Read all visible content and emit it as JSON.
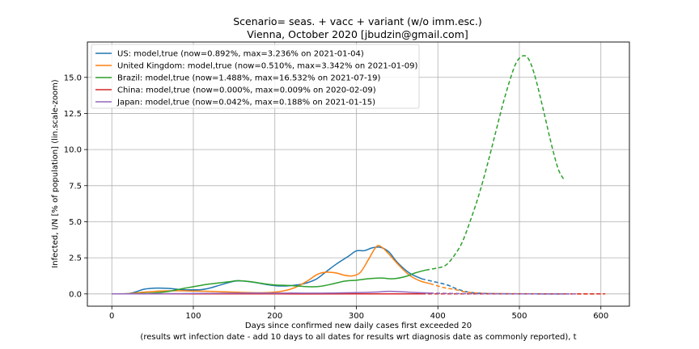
{
  "chart_data": {
    "type": "line",
    "title": "Scenario= seas. + vacc + variant (w/o imm.esc.)",
    "subtitle": "Vienna, October 2020 [jbudzin@gmail.com]",
    "xlabel": "Days since confirmed new daily cases first exceeded 20",
    "xlabel2": "(results wrt infection date - add 10 days to all dates for results wrt diagnosis date as commonly reported), t",
    "ylabel": "Infected, I/N [% of population] (lin.scale-zoom)",
    "xlim": [
      -30,
      635
    ],
    "ylim": [
      -0.85,
      17.45
    ],
    "xticks": [
      0,
      100,
      200,
      300,
      400,
      500,
      600
    ],
    "yticks": [
      0.0,
      2.5,
      5.0,
      7.5,
      10.0,
      12.5,
      15.0
    ],
    "ytick_labels": [
      "0.0",
      "2.5",
      "5.0",
      "7.5",
      "10.0",
      "12.5",
      "15.0"
    ],
    "grid": true,
    "legend_position": "top-left",
    "series": [
      {
        "name": "US: model,true (now=0.892%, max=3.236% on 2021-01-04)",
        "color": "#1f77b4",
        "split_x": 380,
        "points": [
          [
            0,
            0
          ],
          [
            20,
            0.02
          ],
          [
            30,
            0.15
          ],
          [
            40,
            0.33
          ],
          [
            55,
            0.4
          ],
          [
            70,
            0.38
          ],
          [
            85,
            0.3
          ],
          [
            100,
            0.28
          ],
          [
            110,
            0.3
          ],
          [
            120,
            0.4
          ],
          [
            135,
            0.65
          ],
          [
            150,
            0.88
          ],
          [
            160,
            0.9
          ],
          [
            175,
            0.8
          ],
          [
            190,
            0.65
          ],
          [
            205,
            0.55
          ],
          [
            220,
            0.58
          ],
          [
            235,
            0.7
          ],
          [
            250,
            1.0
          ],
          [
            262,
            1.5
          ],
          [
            275,
            2.05
          ],
          [
            290,
            2.6
          ],
          [
            300,
            2.98
          ],
          [
            310,
            3.0
          ],
          [
            320,
            3.2
          ],
          [
            330,
            3.22
          ],
          [
            340,
            2.9
          ],
          [
            350,
            2.2
          ],
          [
            365,
            1.45
          ],
          [
            380,
            1.05
          ],
          [
            395,
            0.85
          ],
          [
            410,
            0.65
          ],
          [
            420,
            0.42
          ],
          [
            430,
            0.22
          ],
          [
            440,
            0.1
          ],
          [
            455,
            0.04
          ],
          [
            480,
            0.01
          ],
          [
            520,
            0
          ],
          [
            560,
            0
          ]
        ]
      },
      {
        "name": "United Kingdom: model,true (now=0.510%, max=3.342% on 2021-01-09)",
        "color": "#ff7f0e",
        "split_x": 390,
        "points": [
          [
            0,
            0
          ],
          [
            20,
            0.02
          ],
          [
            40,
            0.12
          ],
          [
            60,
            0.2
          ],
          [
            80,
            0.22
          ],
          [
            100,
            0.2
          ],
          [
            120,
            0.18
          ],
          [
            140,
            0.14
          ],
          [
            160,
            0.1
          ],
          [
            180,
            0.08
          ],
          [
            195,
            0.1
          ],
          [
            210,
            0.2
          ],
          [
            225,
            0.45
          ],
          [
            240,
            0.9
          ],
          [
            252,
            1.35
          ],
          [
            262,
            1.5
          ],
          [
            275,
            1.45
          ],
          [
            285,
            1.3
          ],
          [
            295,
            1.25
          ],
          [
            305,
            1.5
          ],
          [
            315,
            2.4
          ],
          [
            325,
            3.3
          ],
          [
            332,
            3.2
          ],
          [
            340,
            2.75
          ],
          [
            352,
            2.0
          ],
          [
            365,
            1.3
          ],
          [
            378,
            0.9
          ],
          [
            390,
            0.72
          ],
          [
            400,
            0.55
          ],
          [
            410,
            0.4
          ],
          [
            420,
            0.32
          ],
          [
            430,
            0.18
          ],
          [
            440,
            0.1
          ],
          [
            455,
            0.04
          ],
          [
            480,
            0.02
          ],
          [
            520,
            0.01
          ],
          [
            560,
            0
          ],
          [
            600,
            0
          ],
          [
            605,
            0
          ]
        ]
      },
      {
        "name": "Brazil: model,true (now=1.488%, max=16.532% on 2021-07-19)",
        "color": "#2ca02c",
        "split_x": 385,
        "points": [
          [
            0,
            0
          ],
          [
            30,
            0.02
          ],
          [
            50,
            0.06
          ],
          [
            70,
            0.18
          ],
          [
            85,
            0.35
          ],
          [
            100,
            0.5
          ],
          [
            115,
            0.65
          ],
          [
            130,
            0.75
          ],
          [
            145,
            0.85
          ],
          [
            155,
            0.92
          ],
          [
            170,
            0.85
          ],
          [
            185,
            0.72
          ],
          [
            200,
            0.62
          ],
          [
            220,
            0.58
          ],
          [
            240,
            0.5
          ],
          [
            255,
            0.52
          ],
          [
            270,
            0.68
          ],
          [
            285,
            0.88
          ],
          [
            300,
            0.95
          ],
          [
            315,
            1.05
          ],
          [
            330,
            1.1
          ],
          [
            345,
            1.05
          ],
          [
            360,
            1.2
          ],
          [
            372,
            1.45
          ],
          [
            385,
            1.65
          ],
          [
            400,
            1.8
          ],
          [
            410,
            2.0
          ],
          [
            420,
            2.65
          ],
          [
            430,
            3.6
          ],
          [
            440,
            5.1
          ],
          [
            450,
            6.8
          ],
          [
            460,
            8.8
          ],
          [
            470,
            11.0
          ],
          [
            480,
            13.2
          ],
          [
            490,
            15.1
          ],
          [
            497,
            16.1
          ],
          [
            505,
            16.5
          ],
          [
            512,
            16.2
          ],
          [
            520,
            14.9
          ],
          [
            530,
            12.6
          ],
          [
            540,
            10.2
          ],
          [
            548,
            8.6
          ],
          [
            555,
            7.9
          ]
        ]
      },
      {
        "name": "China: model,true (now=0.000%, max=0.009% on 2020-02-09)",
        "color": "#d62728",
        "split_x": 380,
        "points": [
          [
            0,
            0
          ],
          [
            30,
            0.005
          ],
          [
            60,
            0.009
          ],
          [
            100,
            0.004
          ],
          [
            200,
            0
          ],
          [
            300,
            0
          ],
          [
            380,
            0
          ],
          [
            500,
            0
          ],
          [
            605,
            0
          ]
        ]
      },
      {
        "name": "Japan: model,true (now=0.042%, max=0.188% on 2021-01-15)",
        "color": "#9467bd",
        "split_x": 390,
        "points": [
          [
            0,
            0
          ],
          [
            60,
            0.01
          ],
          [
            100,
            0.03
          ],
          [
            150,
            0.05
          ],
          [
            180,
            0.06
          ],
          [
            200,
            0.05
          ],
          [
            220,
            0.06
          ],
          [
            250,
            0.05
          ],
          [
            270,
            0.06
          ],
          [
            290,
            0.08
          ],
          [
            310,
            0.1
          ],
          [
            325,
            0.13
          ],
          [
            340,
            0.18
          ],
          [
            355,
            0.15
          ],
          [
            370,
            0.1
          ],
          [
            390,
            0.06
          ],
          [
            410,
            0.04
          ],
          [
            440,
            0.02
          ],
          [
            480,
            0.01
          ],
          [
            520,
            0
          ],
          [
            570,
            0
          ]
        ]
      }
    ]
  }
}
